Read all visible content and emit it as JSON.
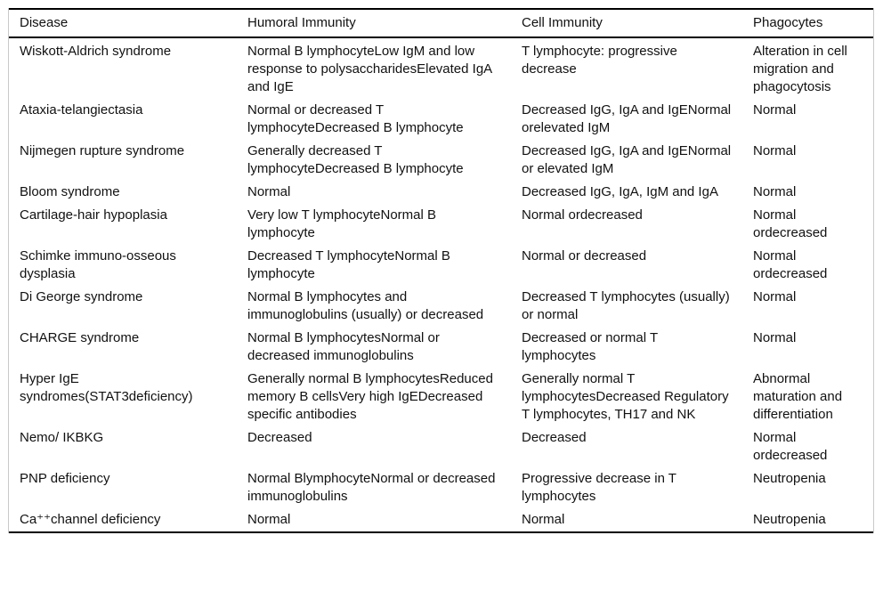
{
  "table": {
    "headers": [
      "Disease",
      "Humoral Immunity",
      "Cell Immunity",
      "Phagocytes"
    ],
    "rows": [
      {
        "disease": "Wiskott-Aldrich syndrome",
        "humoral": "Normal B lymphocyteLow IgM and low response to polysaccharidesElevated IgA and IgE",
        "cell": "T lymphocyte: progressive decrease",
        "phagocytes": "Alteration in cell migration and phagocytosis"
      },
      {
        "disease": "Ataxia-telangiectasia",
        "humoral": "Normal or decreased T lymphocyteDecreased B lymphocyte",
        "cell": "Decreased IgG, IgA and IgENormal orelevated IgM",
        "phagocytes": "Normal"
      },
      {
        "disease": "Nijmegen rupture syndrome",
        "humoral": "Generally decreased T lymphocyteDecreased B lymphocyte",
        "cell": "Decreased IgG, IgA and IgENormal or elevated IgM",
        "phagocytes": "Normal"
      },
      {
        "disease": "Bloom syndrome",
        "humoral": "Normal",
        "cell": "Decreased IgG, IgA, IgM and IgA",
        "phagocytes": "Normal"
      },
      {
        "disease": "Cartilage-hair hypoplasia",
        "humoral": "Very low T lymphocyteNormal B lymphocyte",
        "cell": "Normal ordecreased",
        "phagocytes": "Normal ordecreased"
      },
      {
        "disease": "Schimke immuno-osseous dysplasia",
        "humoral": "Decreased T lymphocyteNormal B lymphocyte",
        "cell": "Normal or decreased",
        "phagocytes": "Normal ordecreased"
      },
      {
        "disease": "Di George syndrome",
        "humoral": "Normal B lymphocytes and immunoglobulins (usually) or decreased",
        "cell": "Decreased T lymphocytes (usually) or normal",
        "phagocytes": "Normal"
      },
      {
        "disease": "CHARGE syndrome",
        "humoral": "Normal B lymphocytesNormal or decreased immunoglobulins",
        "cell": "Decreased or normal T lymphocytes",
        "phagocytes": "Normal"
      },
      {
        "disease": "Hyper IgE syndromes(STAT3deficiency)",
        "humoral": "Generally normal B lymphocytesReduced memory B cellsVery high IgEDecreased specific antibodies",
        "cell": "Generally normal T lymphocytesDecreased Regulatory T lymphocytes, TH17 and NK",
        "phagocytes": "Abnormal maturation and differentiation"
      },
      {
        "disease": "Nemo/ IKBKG",
        "humoral": "Decreased",
        "cell": "Decreased",
        "phagocytes": "Normal ordecreased"
      },
      {
        "disease": "PNP deficiency",
        "humoral": "Normal BlymphocyteNormal or decreased immunoglobulins",
        "cell": "Progressive decrease in T lymphocytes",
        "phagocytes": "Neutropenia"
      },
      {
        "disease": "Ca⁺⁺channel deficiency",
        "humoral": "Normal",
        "cell": "Normal",
        "phagocytes": "Neutropenia"
      }
    ]
  }
}
